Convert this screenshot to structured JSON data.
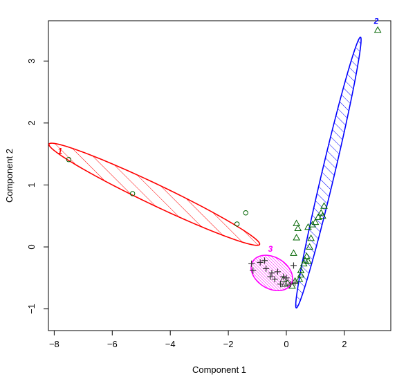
{
  "chart_data": {
    "type": "scatter",
    "xlabel": "Component 1",
    "ylabel": "Component 2",
    "xlim": [
      -8.2,
      3.6
    ],
    "ylim": [
      -1.35,
      3.65
    ],
    "x_ticks": [
      -8,
      -6,
      -4,
      -2,
      0,
      2
    ],
    "y_ticks": [
      -1,
      0,
      1,
      2,
      3
    ],
    "x_tick_labels": [
      "−8",
      "−6",
      "−4",
      "−2",
      "0",
      "2"
    ],
    "y_tick_labels": [
      "−1",
      "0",
      "1",
      "2",
      "3"
    ],
    "grid": false,
    "clusters": [
      {
        "label": "1",
        "color": "#ff0000",
        "marker": "circle",
        "label_pos": [
          -7.8,
          1.5
        ],
        "ellipse": {
          "cx": -4.55,
          "cy": 0.85,
          "rx": 3.72,
          "ry": 0.18,
          "angle_deg": -12.5
        },
        "points": [
          [
            -7.5,
            1.41
          ],
          [
            -5.3,
            0.86
          ],
          [
            -1.4,
            0.55
          ],
          [
            -1.7,
            0.37
          ]
        ]
      },
      {
        "label": "2",
        "color": "#0000ff",
        "marker": "triangle",
        "label_pos": [
          3.1,
          3.6
        ],
        "ellipse": {
          "cx": 1.45,
          "cy": 1.2,
          "rx": 2.45,
          "ry": 0.2,
          "angle_deg": 63
        },
        "points": [
          [
            3.15,
            3.5
          ],
          [
            1.3,
            0.66
          ],
          [
            1.2,
            0.55
          ],
          [
            1.25,
            0.5
          ],
          [
            1.1,
            0.48
          ],
          [
            1.0,
            0.4
          ],
          [
            0.9,
            0.36
          ],
          [
            0.35,
            0.38
          ],
          [
            0.4,
            0.3
          ],
          [
            0.75,
            0.32
          ],
          [
            0.35,
            0.15
          ],
          [
            0.85,
            0.14
          ],
          [
            0.8,
            0.0
          ],
          [
            0.25,
            -0.1
          ],
          [
            0.7,
            -0.15
          ],
          [
            0.65,
            -0.22
          ],
          [
            0.75,
            -0.23
          ],
          [
            0.6,
            -0.27
          ],
          [
            0.5,
            -0.38
          ],
          [
            0.5,
            -0.45
          ],
          [
            0.45,
            -0.52
          ],
          [
            0.3,
            -0.55
          ],
          [
            0.2,
            -0.63
          ],
          [
            0.05,
            -0.58
          ],
          [
            -0.05,
            -0.6
          ],
          [
            -0.1,
            -0.52
          ]
        ]
      },
      {
        "label": "3",
        "color": "#ff00ff",
        "marker": "plus",
        "label_pos": [
          -0.55,
          -0.08
        ],
        "ellipse": {
          "cx": -0.5,
          "cy": -0.42,
          "rx": 0.72,
          "ry": 0.27,
          "angle_deg": -8
        },
        "points": [
          [
            -1.2,
            -0.27
          ],
          [
            -1.15,
            -0.38
          ],
          [
            -0.9,
            -0.25
          ],
          [
            -0.75,
            -0.22
          ],
          [
            -0.7,
            -0.35
          ],
          [
            -0.55,
            -0.48
          ],
          [
            -0.5,
            -0.42
          ],
          [
            -0.4,
            -0.52
          ],
          [
            -0.3,
            -0.4
          ],
          [
            -0.2,
            -0.6
          ],
          [
            -0.1,
            -0.48
          ],
          [
            0.0,
            -0.5
          ],
          [
            0.15,
            -0.6
          ],
          [
            0.3,
            -0.58
          ],
          [
            0.25,
            -0.3
          ]
        ]
      }
    ],
    "point_color": "#006400"
  }
}
